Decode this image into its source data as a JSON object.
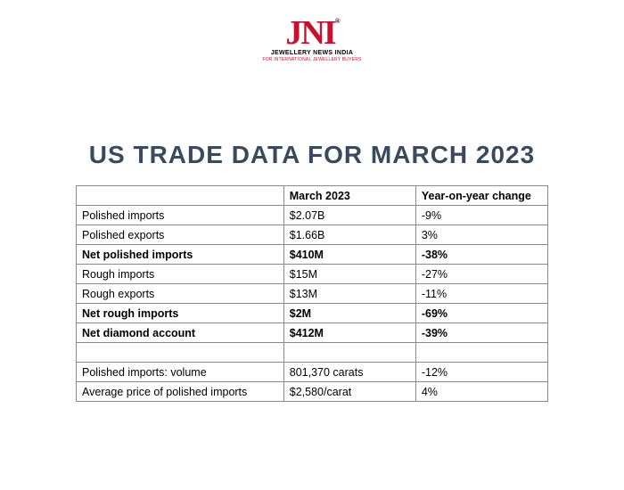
{
  "logo": {
    "main": "JNI",
    "reg": "®",
    "main_color": "#c8102e",
    "sub": "JEWELLERY NEWS INDIA",
    "sub_color": "#000000",
    "sub2": "FOR INTERNATIONAL JEWELLERY BUYERS",
    "sub2_color": "#c8102e"
  },
  "title": {
    "text": "US TRADE DATA FOR MARCH 2023",
    "color": "#3a4a5e",
    "fontsize": 28
  },
  "table": {
    "border_color": "#8a8a8a",
    "font_size": 12.5,
    "columns": [
      "",
      "March 2023",
      "Year-on-year change"
    ],
    "col_widths_pct": [
      44,
      28,
      28
    ],
    "rows": [
      {
        "cells": [
          "Polished imports",
          "$2.07B",
          "-9%"
        ],
        "bold": false
      },
      {
        "cells": [
          "Polished exports",
          "$1.66B",
          "3%"
        ],
        "bold": false
      },
      {
        "cells": [
          "Net polished imports",
          "$410M",
          "-38%"
        ],
        "bold": true
      },
      {
        "cells": [
          "Rough imports",
          "$15M",
          "-27%"
        ],
        "bold": false
      },
      {
        "cells": [
          "Rough exports",
          "$13M",
          "-11%"
        ],
        "bold": false
      },
      {
        "cells": [
          "Net rough imports",
          "$2M",
          "-69%"
        ],
        "bold": true
      },
      {
        "cells": [
          "Net diamond account",
          "$412M",
          "-39%"
        ],
        "bold": true
      },
      {
        "cells": [
          "",
          "",
          ""
        ],
        "bold": false,
        "empty": true
      },
      {
        "cells": [
          "Polished imports: volume",
          "801,370 carats",
          "-12%"
        ],
        "bold": false
      },
      {
        "cells": [
          "Average price of polished imports",
          "$2,580/carat",
          "4%"
        ],
        "bold": false
      }
    ]
  }
}
